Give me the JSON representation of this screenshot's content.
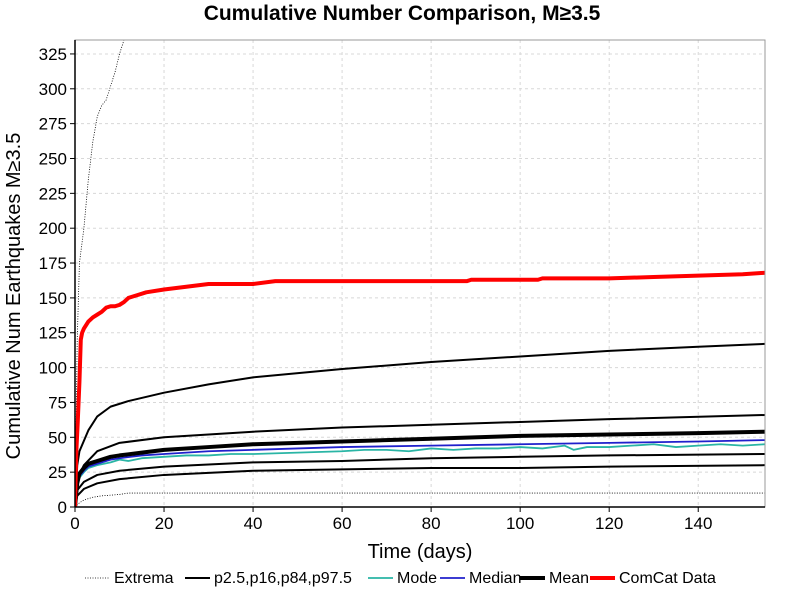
{
  "chart_data": {
    "type": "line",
    "title": "Cumulative Number Comparison, M≥3.5",
    "xlabel": "Time (days)",
    "ylabel": "Cumulative Num Earthquakes M≥3.5",
    "xlim": [
      0,
      155
    ],
    "ylim": [
      0,
      335
    ],
    "xticks": [
      0,
      20,
      40,
      60,
      80,
      100,
      120,
      140
    ],
    "yticks": [
      0,
      25,
      50,
      75,
      100,
      125,
      150,
      175,
      200,
      225,
      250,
      275,
      300,
      325
    ],
    "grid": true,
    "legend_position": "bottom",
    "series": [
      {
        "name": "Extrema",
        "color": "#000000",
        "style": "dotted",
        "lines": [
          [
            [
              0,
              0
            ],
            [
              0.5,
              120
            ],
            [
              1,
              175
            ],
            [
              2,
              200
            ],
            [
              3,
              235
            ],
            [
              4,
              262
            ],
            [
              5,
              280
            ],
            [
              6,
              288
            ],
            [
              7,
              292
            ],
            [
              8,
              302
            ],
            [
              9,
              312
            ],
            [
              10,
              325
            ],
            [
              11,
              335
            ]
          ],
          [
            [
              0,
              0
            ],
            [
              1,
              3
            ],
            [
              2,
              5
            ],
            [
              4,
              7
            ],
            [
              6,
              8
            ],
            [
              10,
              9
            ],
            [
              12,
              10
            ],
            [
              30,
              10
            ],
            [
              155,
              10
            ]
          ]
        ]
      },
      {
        "name": "p2.5,p16,p84,p97.5",
        "color": "#000000",
        "style": "solid",
        "lines": [
          [
            [
              0,
              0
            ],
            [
              0.5,
              8
            ],
            [
              2,
              13
            ],
            [
              5,
              17
            ],
            [
              10,
              20
            ],
            [
              20,
              23
            ],
            [
              40,
              26
            ],
            [
              60,
              27
            ],
            [
              80,
              28
            ],
            [
              100,
              28
            ],
            [
              120,
              29
            ],
            [
              155,
              30
            ]
          ],
          [
            [
              0,
              0
            ],
            [
              0.5,
              12
            ],
            [
              2,
              18
            ],
            [
              5,
              23
            ],
            [
              10,
              26
            ],
            [
              20,
              29
            ],
            [
              40,
              32
            ],
            [
              60,
              33
            ],
            [
              80,
              35
            ],
            [
              100,
              36
            ],
            [
              120,
              37
            ],
            [
              155,
              38
            ]
          ],
          [
            [
              0,
              0
            ],
            [
              0.5,
              20
            ],
            [
              2,
              30
            ],
            [
              5,
              40
            ],
            [
              10,
              46
            ],
            [
              20,
              50
            ],
            [
              40,
              54
            ],
            [
              60,
              57
            ],
            [
              80,
              59
            ],
            [
              100,
              61
            ],
            [
              120,
              63
            ],
            [
              155,
              66
            ]
          ],
          [
            [
              0,
              0
            ],
            [
              0.5,
              30
            ],
            [
              1,
              40
            ],
            [
              3,
              55
            ],
            [
              5,
              65
            ],
            [
              8,
              72
            ],
            [
              12,
              76
            ],
            [
              20,
              82
            ],
            [
              30,
              88
            ],
            [
              40,
              93
            ],
            [
              60,
              99
            ],
            [
              80,
              104
            ],
            [
              100,
              108
            ],
            [
              120,
              112
            ],
            [
              140,
              115
            ],
            [
              155,
              117
            ]
          ]
        ]
      },
      {
        "name": "Mode",
        "color": "#2ab5a5",
        "style": "solid",
        "lines": [
          [
            [
              0,
              0
            ],
            [
              0.5,
              15
            ],
            [
              1,
              21
            ],
            [
              2,
              25
            ],
            [
              3,
              28
            ],
            [
              5,
              30
            ],
            [
              8,
              32
            ],
            [
              10,
              34
            ],
            [
              12,
              33
            ],
            [
              15,
              35
            ],
            [
              20,
              36
            ],
            [
              25,
              37
            ],
            [
              30,
              37
            ],
            [
              35,
              38
            ],
            [
              40,
              38
            ],
            [
              50,
              39
            ],
            [
              60,
              40
            ],
            [
              65,
              41
            ],
            [
              70,
              41
            ],
            [
              75,
              40
            ],
            [
              80,
              42
            ],
            [
              85,
              41
            ],
            [
              90,
              42
            ],
            [
              95,
              42
            ],
            [
              100,
              43
            ],
            [
              105,
              42
            ],
            [
              110,
              44
            ],
            [
              112,
              41
            ],
            [
              115,
              43
            ],
            [
              120,
              43
            ],
            [
              125,
              44
            ],
            [
              130,
              45
            ],
            [
              135,
              43
            ],
            [
              140,
              44
            ],
            [
              145,
              45
            ],
            [
              150,
              44
            ],
            [
              155,
              45
            ]
          ]
        ]
      },
      {
        "name": "Median",
        "color": "#2020cc",
        "style": "solid",
        "lines": [
          [
            [
              0,
              0
            ],
            [
              0.5,
              16
            ],
            [
              1,
              22
            ],
            [
              2,
              26
            ],
            [
              3,
              29
            ],
            [
              5,
              31
            ],
            [
              8,
              34
            ],
            [
              10,
              35
            ],
            [
              15,
              37
            ],
            [
              20,
              38
            ],
            [
              30,
              40
            ],
            [
              40,
              41
            ],
            [
              50,
              42
            ],
            [
              60,
              43
            ],
            [
              80,
              44
            ],
            [
              100,
              45
            ],
            [
              120,
              46
            ],
            [
              140,
              47
            ],
            [
              155,
              48
            ]
          ]
        ]
      },
      {
        "name": "Mean",
        "color": "#000000",
        "style": "thick",
        "lines": [
          [
            [
              0,
              0
            ],
            [
              0.5,
              17
            ],
            [
              1,
              24
            ],
            [
              2,
              28
            ],
            [
              3,
              31
            ],
            [
              5,
              33
            ],
            [
              8,
              36
            ],
            [
              10,
              37
            ],
            [
              15,
              39
            ],
            [
              20,
              41
            ],
            [
              30,
              43
            ],
            [
              40,
              45
            ],
            [
              60,
              47
            ],
            [
              80,
              49
            ],
            [
              100,
              51
            ],
            [
              120,
              52
            ],
            [
              140,
              53
            ],
            [
              155,
              54
            ]
          ]
        ]
      },
      {
        "name": "ComCat Data",
        "color": "#ff0000",
        "style": "thick",
        "lines": [
          [
            [
              0,
              0
            ],
            [
              0.3,
              40
            ],
            [
              0.6,
              60
            ],
            [
              1,
              90
            ],
            [
              1.3,
              120
            ],
            [
              1.6,
              125
            ],
            [
              2,
              128
            ],
            [
              3,
              133
            ],
            [
              4,
              136
            ],
            [
              5,
              138
            ],
            [
              6,
              140
            ],
            [
              7,
              143
            ],
            [
              8,
              144
            ],
            [
              9,
              144
            ],
            [
              10,
              145
            ],
            [
              11,
              147
            ],
            [
              12,
              150
            ],
            [
              14,
              152
            ],
            [
              16,
              154
            ],
            [
              20,
              156
            ],
            [
              25,
              158
            ],
            [
              30,
              160
            ],
            [
              40,
              160
            ],
            [
              45,
              162
            ],
            [
              60,
              162
            ],
            [
              88,
              162
            ],
            [
              89,
              163
            ],
            [
              104,
              163
            ],
            [
              105,
              164
            ],
            [
              120,
              164
            ],
            [
              130,
              165
            ],
            [
              140,
              166
            ],
            [
              150,
              167
            ],
            [
              155,
              168
            ]
          ]
        ]
      }
    ]
  }
}
